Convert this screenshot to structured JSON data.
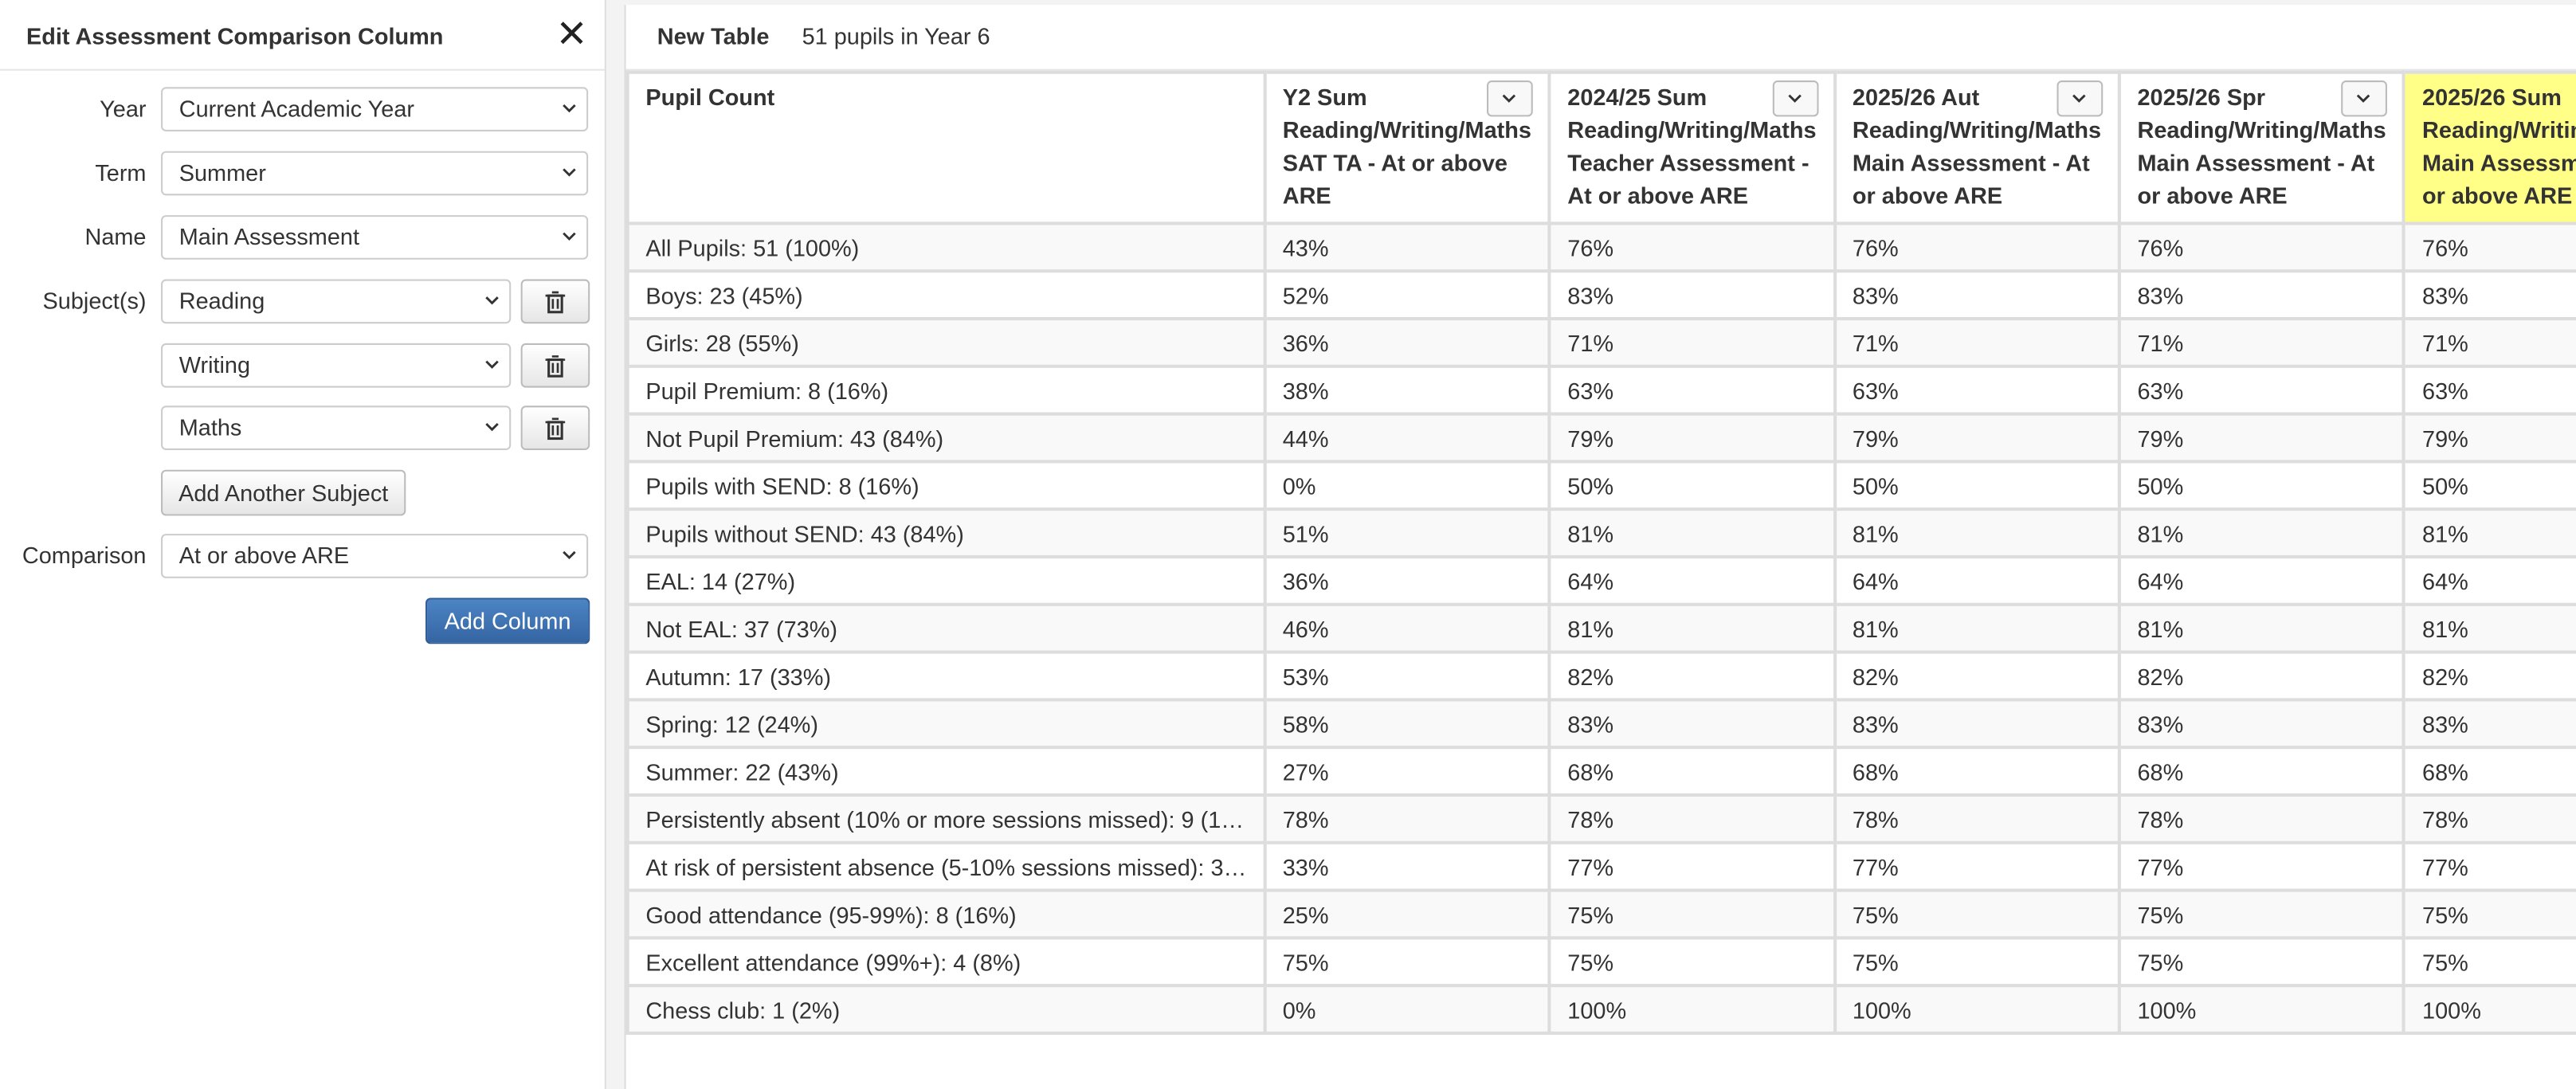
{
  "panel": {
    "title": "Edit Assessment Comparison Column",
    "fields": [
      {
        "label": "Year",
        "value": "Current Academic Year"
      },
      {
        "label": "Term",
        "value": "Summer"
      },
      {
        "label": "Name",
        "value": "Main Assessment"
      }
    ],
    "subjects_label": "Subject(s)",
    "subjects": [
      "Reading",
      "Writing",
      "Maths"
    ],
    "add_subject": "Add Another Subject",
    "comparison": {
      "label": "Comparison",
      "value": "At or above ARE"
    },
    "add_column": "Add Column"
  },
  "table": {
    "title": "New Table",
    "subtitle": "51 pupils in Year 6",
    "columns": [
      {
        "head": "Pupil Count",
        "rest": null
      },
      {
        "head": "Y2 Sum",
        "rest": "Reading/Writing/Maths SAT TA - At or above ARE"
      },
      {
        "head": "2024/25 Sum",
        "rest": "Reading/Writing/Maths Teacher Assessment - At or above ARE"
      },
      {
        "head": "2025/26 Aut",
        "rest": "Reading/Writing/Maths Main Assessment - At or above ARE"
      },
      {
        "head": "2025/26 Spr",
        "rest": "Reading/Writing/Maths Main Assessment - At or above ARE"
      },
      {
        "head": "2025/26 Sum",
        "rest": "Reading/Writing/Maths Main Assessment - At or above ARE"
      }
    ],
    "rows": [
      [
        "All Pupils: 51 (100%)",
        "43%",
        "76%",
        "76%",
        "76%",
        "76%"
      ],
      [
        "Boys: 23 (45%)",
        "52%",
        "83%",
        "83%",
        "83%",
        "83%"
      ],
      [
        "Girls: 28 (55%)",
        "36%",
        "71%",
        "71%",
        "71%",
        "71%"
      ],
      [
        "Pupil Premium: 8 (16%)",
        "38%",
        "63%",
        "63%",
        "63%",
        "63%"
      ],
      [
        "Not Pupil Premium: 43 (84%)",
        "44%",
        "79%",
        "79%",
        "79%",
        "79%"
      ],
      [
        "Pupils with SEND: 8 (16%)",
        "0%",
        "50%",
        "50%",
        "50%",
        "50%"
      ],
      [
        "Pupils without SEND: 43 (84%)",
        "51%",
        "81%",
        "81%",
        "81%",
        "81%"
      ],
      [
        "EAL: 14 (27%)",
        "36%",
        "64%",
        "64%",
        "64%",
        "64%"
      ],
      [
        "Not EAL: 37 (73%)",
        "46%",
        "81%",
        "81%",
        "81%",
        "81%"
      ],
      [
        "Autumn: 17 (33%)",
        "53%",
        "82%",
        "82%",
        "82%",
        "82%"
      ],
      [
        "Spring: 12 (24%)",
        "58%",
        "83%",
        "83%",
        "83%",
        "83%"
      ],
      [
        "Summer: 22 (43%)",
        "27%",
        "68%",
        "68%",
        "68%",
        "68%"
      ],
      [
        "Persistently absent (10% or more sessions missed): 9 (1…",
        "78%",
        "78%",
        "78%",
        "78%",
        "78%"
      ],
      [
        "At risk of persistent absence (5-10% sessions missed): 3…",
        "33%",
        "77%",
        "77%",
        "77%",
        "77%"
      ],
      [
        "Good attendance (95-99%): 8 (16%)",
        "25%",
        "75%",
        "75%",
        "75%",
        "75%"
      ],
      [
        "Excellent attendance (99%+): 4 (8%)",
        "75%",
        "75%",
        "75%",
        "75%",
        "75%"
      ],
      [
        "Chess club: 1 (2%)",
        "0%",
        "100%",
        "100%",
        "100%",
        "100%"
      ]
    ]
  }
}
